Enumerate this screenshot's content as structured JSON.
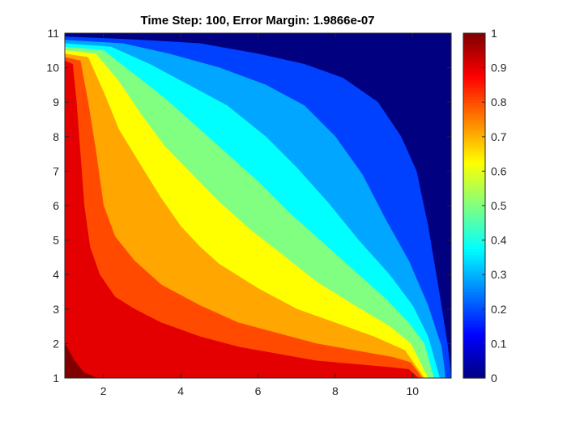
{
  "chart_data": {
    "type": "contour",
    "title": "Time Step: 100, Error Margin: 1.9866e-07",
    "xlim": [
      1,
      11
    ],
    "ylim": [
      1,
      11
    ],
    "x_ticks": [
      2,
      4,
      6,
      8,
      10
    ],
    "y_ticks": [
      1,
      2,
      3,
      4,
      5,
      6,
      7,
      8,
      9,
      10,
      11
    ],
    "colorbar": {
      "colormap": "jet",
      "limits": [
        0,
        1
      ],
      "ticks": [
        0,
        0.1,
        0.2,
        0.3,
        0.4,
        0.5,
        0.6,
        0.7,
        0.8,
        0.9,
        1
      ]
    },
    "grid": false,
    "levels": [
      {
        "min": 0.9,
        "max": 1.0,
        "color": "#800000",
        "boundary": [
          [
            1,
            2.0
          ],
          [
            1.25,
            1.5
          ],
          [
            1.5,
            1.15
          ],
          [
            1.85,
            1.0
          ]
        ]
      },
      {
        "min": 0.8,
        "max": 0.9,
        "color": "#e40000",
        "boundary": [
          [
            1.0,
            10.2
          ],
          [
            1.2,
            10.1
          ],
          [
            1.3,
            9.0
          ],
          [
            1.4,
            7.5
          ],
          [
            1.5,
            6.0
          ],
          [
            1.65,
            4.8
          ],
          [
            1.9,
            4.0
          ],
          [
            2.3,
            3.35
          ],
          [
            2.8,
            3.0
          ],
          [
            3.5,
            2.6
          ],
          [
            4.5,
            2.2
          ],
          [
            5.5,
            1.9
          ],
          [
            6.5,
            1.7
          ],
          [
            7.5,
            1.5
          ],
          [
            8.5,
            1.4
          ],
          [
            9.5,
            1.3
          ],
          [
            9.9,
            1.25
          ],
          [
            10.15,
            1.0
          ]
        ]
      },
      {
        "min": 0.7,
        "max": 0.8,
        "color": "#ff4a00",
        "boundary": [
          [
            1.0,
            10.3
          ],
          [
            1.4,
            10.2
          ],
          [
            1.6,
            9.0
          ],
          [
            1.8,
            7.6
          ],
          [
            2.0,
            6.0
          ],
          [
            2.3,
            5.1
          ],
          [
            2.8,
            4.4
          ],
          [
            3.5,
            3.7
          ],
          [
            4.5,
            3.1
          ],
          [
            5.5,
            2.6
          ],
          [
            6.5,
            2.3
          ],
          [
            7.5,
            2.0
          ],
          [
            8.5,
            1.8
          ],
          [
            9.5,
            1.6
          ],
          [
            9.95,
            1.45
          ],
          [
            10.25,
            1.0
          ]
        ]
      },
      {
        "min": 0.6,
        "max": 0.7,
        "color": "#ffa600",
        "boundary": [
          [
            1.0,
            10.4
          ],
          [
            1.6,
            10.3
          ],
          [
            2.0,
            9.3
          ],
          [
            2.4,
            8.2
          ],
          [
            3.0,
            7.1
          ],
          [
            3.5,
            6.2
          ],
          [
            4.0,
            5.4
          ],
          [
            4.5,
            4.8
          ],
          [
            5.0,
            4.3
          ],
          [
            6.0,
            3.6
          ],
          [
            7.0,
            3.0
          ],
          [
            8.0,
            2.6
          ],
          [
            9.0,
            2.2
          ],
          [
            9.8,
            1.8
          ],
          [
            10.3,
            1.0
          ]
        ]
      },
      {
        "min": 0.5,
        "max": 0.6,
        "color": "#ffff00",
        "boundary": [
          [
            1.0,
            10.5
          ],
          [
            1.8,
            10.4
          ],
          [
            2.4,
            9.6
          ],
          [
            3.0,
            8.6
          ],
          [
            3.6,
            7.7
          ],
          [
            4.3,
            6.9
          ],
          [
            5.0,
            6.1
          ],
          [
            5.8,
            5.3
          ],
          [
            6.6,
            4.6
          ],
          [
            7.5,
            3.8
          ],
          [
            8.5,
            3.1
          ],
          [
            9.4,
            2.5
          ],
          [
            9.95,
            2.0
          ],
          [
            10.4,
            1.0
          ]
        ]
      },
      {
        "min": 0.4,
        "max": 0.5,
        "color": "#80ff80",
        "boundary": [
          [
            1.0,
            10.6
          ],
          [
            2.0,
            10.5
          ],
          [
            2.8,
            9.8
          ],
          [
            3.6,
            9.1
          ],
          [
            4.4,
            8.3
          ],
          [
            5.2,
            7.5
          ],
          [
            6.0,
            6.7
          ],
          [
            6.8,
            5.8
          ],
          [
            7.6,
            5.0
          ],
          [
            8.5,
            4.1
          ],
          [
            9.3,
            3.3
          ],
          [
            9.9,
            2.6
          ],
          [
            10.3,
            2.0
          ],
          [
            10.55,
            1.0
          ]
        ]
      },
      {
        "min": 0.3,
        "max": 0.4,
        "color": "#00ffff",
        "boundary": [
          [
            1.0,
            10.7
          ],
          [
            2.2,
            10.6
          ],
          [
            3.2,
            10.1
          ],
          [
            4.2,
            9.5
          ],
          [
            5.2,
            8.9
          ],
          [
            6.2,
            8.0
          ],
          [
            7.0,
            7.1
          ],
          [
            7.8,
            6.1
          ],
          [
            8.6,
            5.0
          ],
          [
            9.4,
            4.0
          ],
          [
            10.0,
            3.1
          ],
          [
            10.4,
            2.2
          ],
          [
            10.7,
            1.0
          ]
        ]
      },
      {
        "min": 0.2,
        "max": 0.3,
        "color": "#00a6ff",
        "boundary": [
          [
            1.0,
            10.8
          ],
          [
            2.5,
            10.7
          ],
          [
            3.7,
            10.4
          ],
          [
            5.0,
            10.0
          ],
          [
            6.2,
            9.5
          ],
          [
            7.2,
            8.9
          ],
          [
            8.0,
            8.0
          ],
          [
            8.7,
            6.9
          ],
          [
            9.3,
            5.6
          ],
          [
            9.9,
            4.4
          ],
          [
            10.4,
            3.1
          ],
          [
            10.75,
            1.9
          ],
          [
            10.85,
            1.0
          ]
        ]
      },
      {
        "min": 0.1,
        "max": 0.2,
        "color": "#0040ff",
        "boundary": [
          [
            1.0,
            10.9
          ],
          [
            3.0,
            10.8
          ],
          [
            4.5,
            10.7
          ],
          [
            6.0,
            10.4
          ],
          [
            7.2,
            10.1
          ],
          [
            8.2,
            9.7
          ],
          [
            9.1,
            9.0
          ],
          [
            9.7,
            8.0
          ],
          [
            10.1,
            7.0
          ],
          [
            10.4,
            5.4
          ],
          [
            10.7,
            3.4
          ],
          [
            10.9,
            2.0
          ],
          [
            11.0,
            1.0
          ]
        ]
      },
      {
        "min": 0.0,
        "max": 0.1,
        "color": "#000080",
        "boundary": []
      }
    ]
  }
}
